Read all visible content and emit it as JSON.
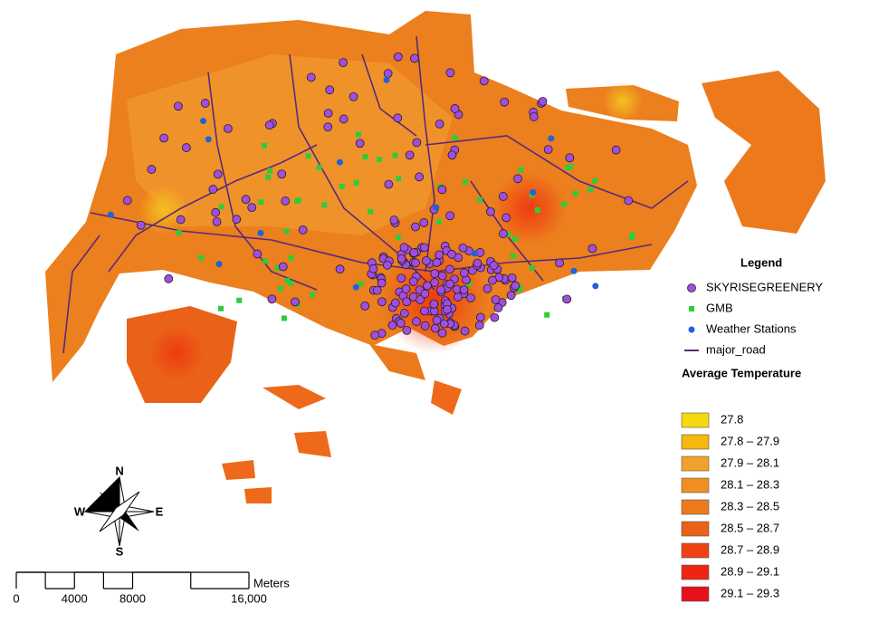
{
  "legend": {
    "title": "Legend",
    "items": [
      {
        "label": "SKYRISEGREENERY",
        "symbol": "circle",
        "color": "#a24de0"
      },
      {
        "label": "GMB",
        "symbol": "square",
        "color": "#2ecc3a"
      },
      {
        "label": "Weather Stations",
        "symbol": "dot",
        "color": "#1f63d6"
      },
      {
        "label": "major_road",
        "symbol": "line",
        "color": "#5a2a7a"
      }
    ]
  },
  "temperature_legend": {
    "title": "Average Temperature",
    "classes": [
      {
        "label": "27.8",
        "color": "#f5d90f"
      },
      {
        "label": "27.8 – 27.9",
        "color": "#f5b80f"
      },
      {
        "label": "27.9 – 28.1",
        "color": "#f2a22a"
      },
      {
        "label": "28.1 – 28.3",
        "color": "#ef8f22"
      },
      {
        "label": "28.3 – 28.5",
        "color": "#ec7a1d"
      },
      {
        "label": "28.5 – 28.7",
        "color": "#e96218"
      },
      {
        "label": "28.7 – 28.9",
        "color": "#ee4311"
      },
      {
        "label": "28.9 – 29.1",
        "color": "#ef2412"
      },
      {
        "label": "29.1 – 29.3",
        "color": "#e8101a"
      }
    ]
  },
  "compass": {
    "n": "N",
    "e": "E",
    "s": "S",
    "w": "W"
  },
  "scale_bar": {
    "unit": "Meters",
    "ticks": [
      0,
      4000,
      8000,
      {
        "value": 16000,
        "label": "16,000"
      }
    ]
  }
}
